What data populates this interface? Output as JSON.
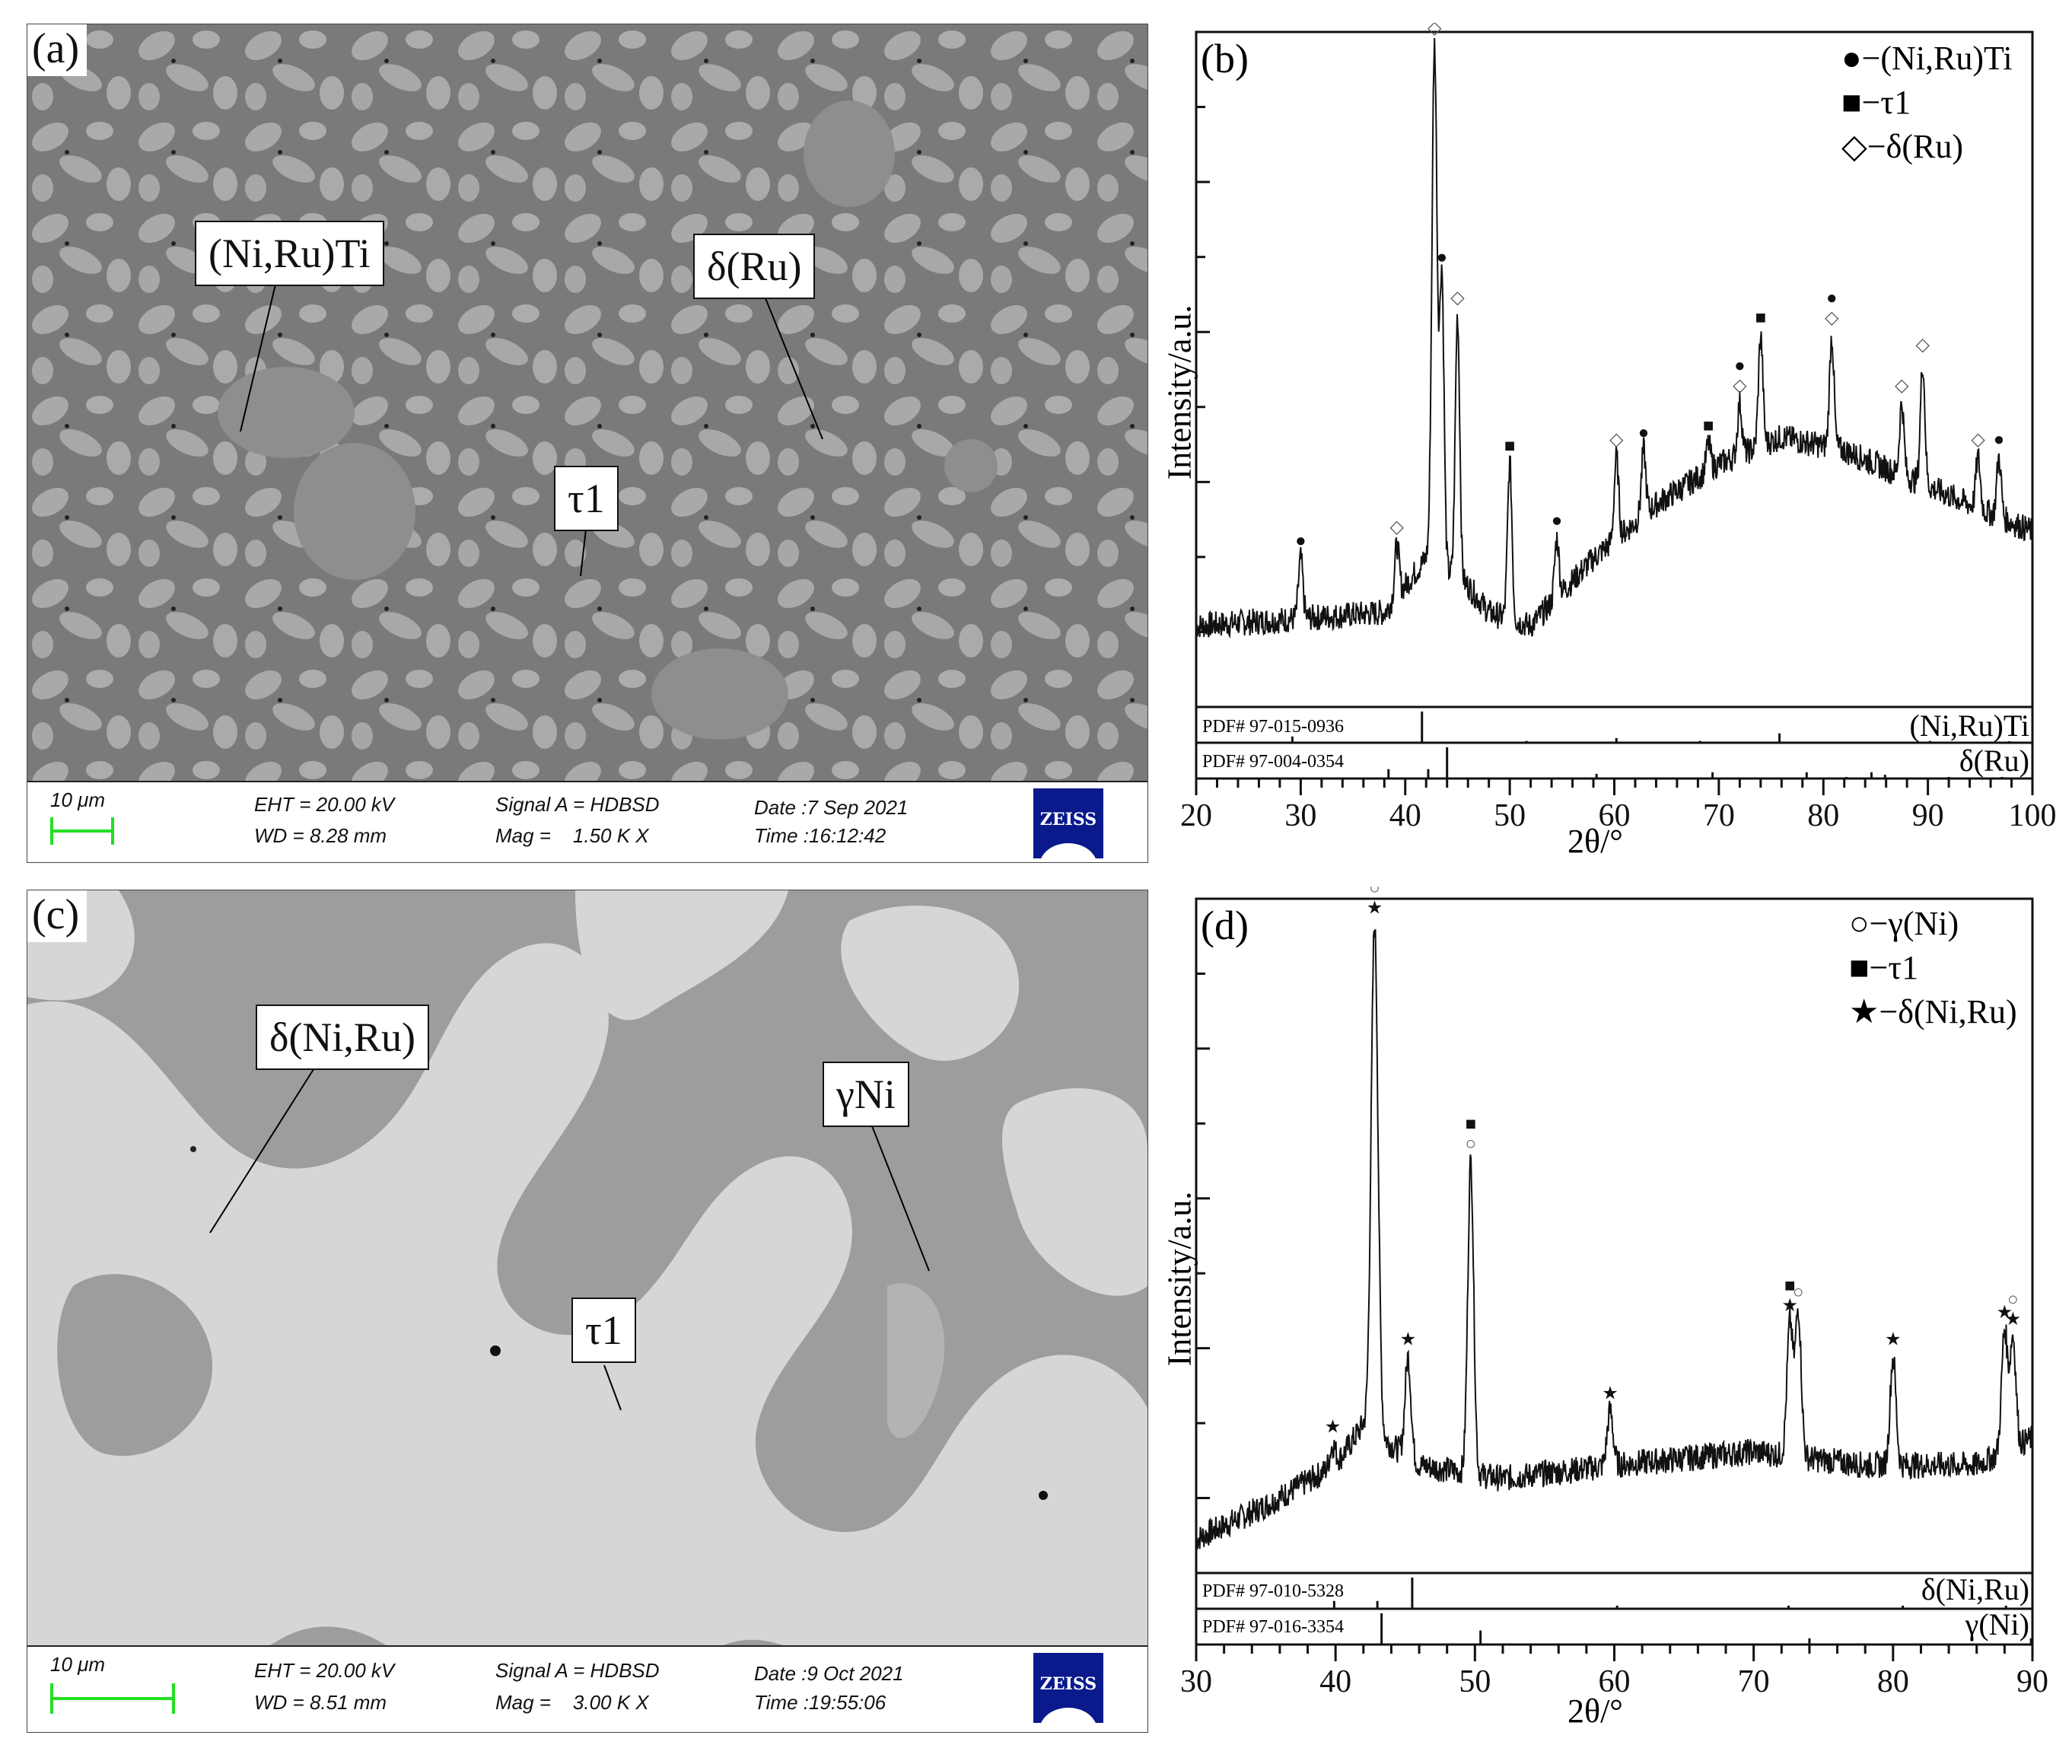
{
  "panels": {
    "a": {
      "label": "(a)",
      "callouts": [
        {
          "text": "(Ni,Ru)Ti"
        },
        {
          "text": "δ(Ru)"
        },
        {
          "text": "τ1"
        }
      ],
      "info": {
        "scale": "10 μm",
        "eht": "EHT = 20.00 kV",
        "wd": "WD = 8.28 mm",
        "signal": "Signal A = HDBSD",
        "mag": "Mag =    1.50 K X",
        "date": "Date :7 Sep 2021",
        "time": "Time :16:12:42",
        "logo": "ZEISS"
      }
    },
    "b": {
      "label": "(b)",
      "ylabel": "Intensity/a.u.",
      "xlabel": "2θ/°",
      "legend": [
        {
          "symbol": "●",
          "text": "−(Ni,Ru)Ti"
        },
        {
          "symbol": "■",
          "text": "−τ1"
        },
        {
          "symbol": "◇",
          "text": "−δ(Ru)"
        }
      ],
      "ref_rows": [
        {
          "pdf": "PDF# 97-015-0936",
          "phase": "(Ni,Ru)Ti"
        },
        {
          "pdf": "PDF# 97-004-0354",
          "phase": "δ(Ru)"
        }
      ],
      "xticks": [
        "20",
        "30",
        "40",
        "50",
        "60",
        "70",
        "80",
        "90",
        "100"
      ]
    },
    "c": {
      "label": "(c)",
      "callouts": [
        {
          "text": "δ(Ni,Ru)"
        },
        {
          "text": "γNi"
        },
        {
          "text": "τ1"
        }
      ],
      "info": {
        "scale": "10 μm",
        "eht": "EHT = 20.00 kV",
        "wd": "WD = 8.51 mm",
        "signal": "Signal A = HDBSD",
        "mag": "Mag =    3.00 K X",
        "date": "Date :9 Oct 2021",
        "time": "Time :19:55:06",
        "logo": "ZEISS"
      }
    },
    "d": {
      "label": "(d)",
      "ylabel": "Intensity/a.u.",
      "xlabel": "2θ/°",
      "legend": [
        {
          "symbol": "○",
          "text": "−γ(Ni)"
        },
        {
          "symbol": "■",
          "text": "−τ1"
        },
        {
          "symbol": "★",
          "text": "−δ(Ni,Ru)"
        }
      ],
      "ref_rows": [
        {
          "pdf": "PDF# 97-010-5328",
          "phase": "δ(Ni,Ru)"
        },
        {
          "pdf": "PDF# 97-016-3354",
          "phase": "γ(Ni)"
        }
      ],
      "xticks": [
        "30",
        "40",
        "50",
        "60",
        "70",
        "80",
        "90"
      ]
    }
  },
  "chart_data": [
    {
      "panel": "b",
      "type": "line",
      "title": "",
      "xlabel": "2θ/°",
      "ylabel": "Intensity/a.u.",
      "xlim": [
        20,
        100
      ],
      "ylim": [
        0,
        100
      ],
      "grid": false,
      "legend_position": "top-right",
      "legend": [
        "(Ni,Ru)Ti",
        "τ1",
        "δ(Ru)"
      ],
      "baseline": [
        [
          20,
          12
        ],
        [
          38,
          14
        ],
        [
          42,
          22
        ],
        [
          46,
          18
        ],
        [
          48,
          14
        ],
        [
          52,
          12
        ],
        [
          58,
          22
        ],
        [
          64,
          30
        ],
        [
          70,
          36
        ],
        [
          76,
          40
        ],
        [
          82,
          38
        ],
        [
          88,
          34
        ],
        [
          94,
          30
        ],
        [
          100,
          26
        ]
      ],
      "peaks": [
        {
          "x": 30.0,
          "y": 22,
          "markers": [
            "●"
          ]
        },
        {
          "x": 39.2,
          "y": 24,
          "markers": [
            "◇"
          ]
        },
        {
          "x": 42.8,
          "y": 98,
          "markers": [
            "■",
            "◇"
          ]
        },
        {
          "x": 43.5,
          "y": 64,
          "markers": [
            "●"
          ]
        },
        {
          "x": 45.0,
          "y": 58,
          "markers": [
            "◇"
          ]
        },
        {
          "x": 50.0,
          "y": 36,
          "markers": [
            "■"
          ]
        },
        {
          "x": 54.5,
          "y": 25,
          "markers": [
            "●"
          ]
        },
        {
          "x": 60.2,
          "y": 37,
          "markers": [
            "◇"
          ]
        },
        {
          "x": 62.8,
          "y": 38,
          "markers": [
            "●"
          ]
        },
        {
          "x": 69.0,
          "y": 39,
          "markers": [
            "■"
          ]
        },
        {
          "x": 72.0,
          "y": 45,
          "markers": [
            "●",
            "◇"
          ]
        },
        {
          "x": 74.0,
          "y": 55,
          "markers": [
            "■"
          ]
        },
        {
          "x": 80.8,
          "y": 55,
          "markers": [
            "●",
            "◇"
          ]
        },
        {
          "x": 87.5,
          "y": 45,
          "markers": [
            "◇"
          ]
        },
        {
          "x": 89.5,
          "y": 51,
          "markers": [
            "◇"
          ]
        },
        {
          "x": 94.8,
          "y": 37,
          "markers": [
            "◇"
          ]
        },
        {
          "x": 96.8,
          "y": 37,
          "markers": [
            "●"
          ]
        }
      ],
      "reference_patterns": [
        {
          "name": "(Ni,Ru)Ti",
          "pdf": "PDF# 97-015-0936",
          "lines": [
            [
              29.2,
              0.2
            ],
            [
              41.6,
              1.0
            ],
            [
              51.6,
              0.06
            ],
            [
              60.2,
              0.15
            ],
            [
              68.2,
              0.06
            ],
            [
              75.8,
              0.3
            ],
            [
              90.2,
              0.06
            ],
            [
              97.8,
              0.05
            ]
          ]
        },
        {
          "name": "δ(Ru)",
          "pdf": "PDF# 97-004-0354",
          "lines": [
            [
              38.4,
              0.3
            ],
            [
              42.2,
              0.3
            ],
            [
              44.0,
              1.0
            ],
            [
              58.3,
              0.15
            ],
            [
              69.4,
              0.2
            ],
            [
              78.4,
              0.2
            ],
            [
              82.2,
              0.05
            ],
            [
              84.6,
              0.2
            ],
            [
              85.9,
              0.12
            ],
            [
              92.0,
              0.05
            ],
            [
              97.1,
              0.05
            ]
          ]
        }
      ]
    },
    {
      "panel": "d",
      "type": "line",
      "title": "",
      "xlabel": "2θ/°",
      "ylabel": "Intensity/a.u.",
      "xlim": [
        30,
        90
      ],
      "ylim": [
        0,
        100
      ],
      "grid": false,
      "legend_position": "top-right",
      "legend": [
        "γ(Ni)",
        "τ1",
        "δ(Ni,Ru)"
      ],
      "baseline": [
        [
          30,
          5
        ],
        [
          35,
          10
        ],
        [
          40,
          16
        ],
        [
          42,
          22
        ],
        [
          46,
          16
        ],
        [
          52,
          14
        ],
        [
          60,
          16
        ],
        [
          70,
          18
        ],
        [
          78,
          16
        ],
        [
          86,
          16
        ],
        [
          90,
          20
        ]
      ],
      "peaks": [
        {
          "x": 39.8,
          "y": 19,
          "markers": [
            "★"
          ]
        },
        {
          "x": 42.8,
          "y": 96,
          "markers": [
            "■",
            "○",
            "★"
          ]
        },
        {
          "x": 45.2,
          "y": 32,
          "markers": [
            "★"
          ]
        },
        {
          "x": 49.7,
          "y": 61,
          "markers": [
            "■",
            "○"
          ]
        },
        {
          "x": 59.7,
          "y": 24,
          "markers": [
            "★"
          ]
        },
        {
          "x": 72.6,
          "y": 37,
          "markers": [
            "■",
            "★"
          ]
        },
        {
          "x": 73.2,
          "y": 39,
          "markers": [
            "○"
          ]
        },
        {
          "x": 80.0,
          "y": 32,
          "markers": [
            "★"
          ]
        },
        {
          "x": 88.0,
          "y": 36,
          "markers": [
            "★"
          ]
        },
        {
          "x": 88.6,
          "y": 35,
          "markers": [
            "○",
            "★"
          ]
        }
      ],
      "reference_patterns": [
        {
          "name": "δ(Ni,Ru)",
          "pdf": "PDF# 97-010-5328",
          "lines": [
            [
              39.9,
              0.25
            ],
            [
              43.0,
              0.25
            ],
            [
              45.5,
              1.0
            ],
            [
              60.2,
              0.1
            ],
            [
              72.5,
              0.1
            ],
            [
              80.7,
              0.1
            ],
            [
              88.1,
              0.1
            ]
          ]
        },
        {
          "name": "γ(Ni)",
          "pdf": "PDF# 97-016-3354",
          "lines": [
            [
              43.3,
              1.0
            ],
            [
              50.4,
              0.45
            ],
            [
              74.0,
              0.2
            ],
            [
              89.9,
              0.2
            ]
          ]
        }
      ]
    }
  ]
}
